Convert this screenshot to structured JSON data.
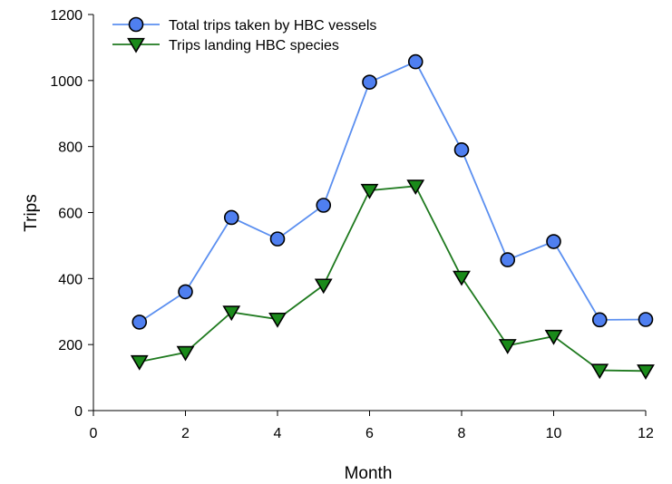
{
  "chart_data": {
    "type": "line",
    "title": "",
    "xlabel": "Month",
    "ylabel": "Trips",
    "xlim": [
      0,
      12
    ],
    "ylim": [
      0,
      1200
    ],
    "xticks": [
      0,
      2,
      4,
      6,
      8,
      10,
      12
    ],
    "yticks": [
      0,
      200,
      400,
      600,
      800,
      1000,
      1200
    ],
    "grid": false,
    "legend_position": "top-left",
    "x": [
      1,
      2,
      3,
      4,
      5,
      6,
      7,
      8,
      9,
      10,
      11,
      12
    ],
    "series": [
      {
        "name": "Total trips taken by HBC vessels",
        "marker": "circle",
        "line_color": "#5b8ff0",
        "marker_color": "#4f7ff0",
        "values": [
          268,
          360,
          585,
          520,
          622,
          995,
          1057,
          790,
          457,
          512,
          275,
          276
        ]
      },
      {
        "name": "Trips landing HBC species",
        "marker": "triangle-down",
        "line_color": "#1f7a1f",
        "marker_color": "#1a8a1a",
        "values": [
          148,
          176,
          298,
          277,
          380,
          667,
          680,
          404,
          197,
          225,
          122,
          120
        ]
      }
    ]
  }
}
